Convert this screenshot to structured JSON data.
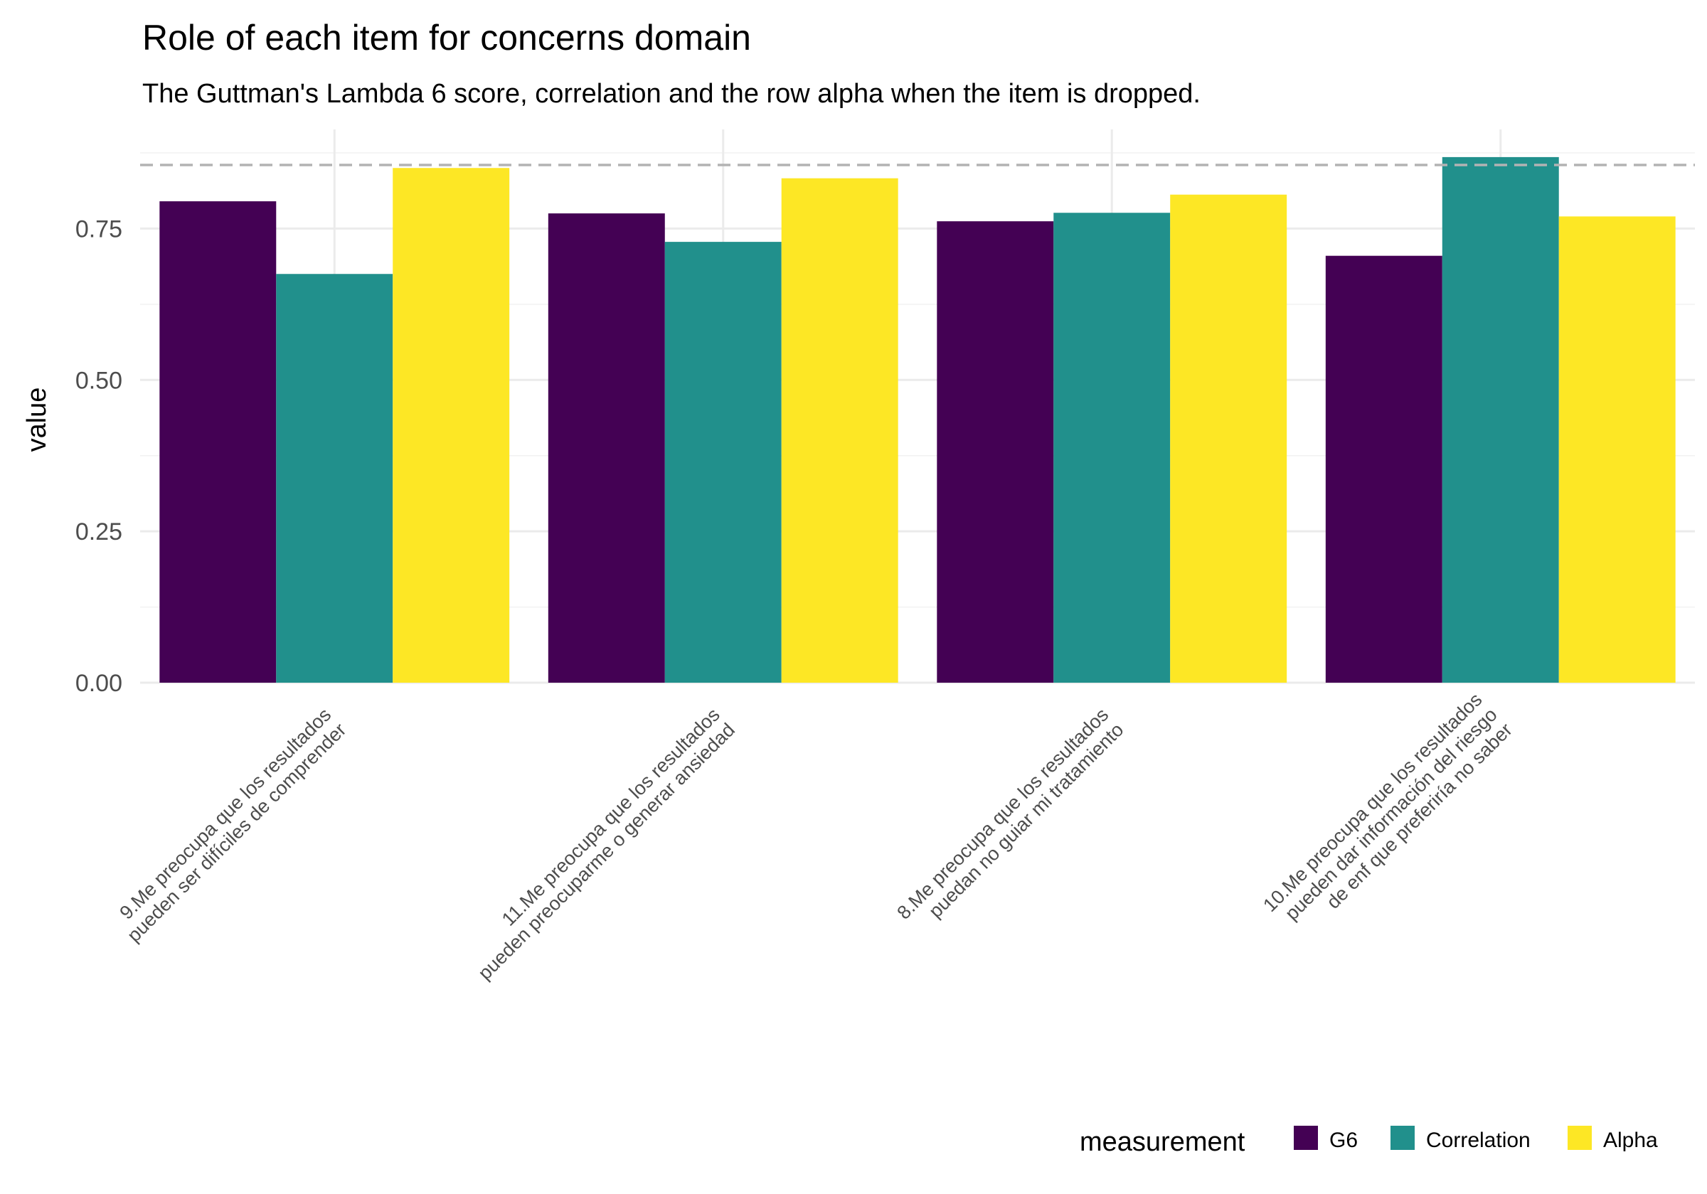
{
  "chart_data": {
    "type": "bar",
    "title": "Role of each item for concerns domain",
    "subtitle": "The Guttman's Lambda 6 score, correlation and the row alpha when the item is dropped.",
    "xlabel": "",
    "ylabel": "value",
    "ylim": [
      0,
      0.88
    ],
    "yticks": [
      0.0,
      0.25,
      0.5,
      0.75
    ],
    "ytick_labels": [
      "0.00",
      "0.25",
      "0.50",
      "0.75"
    ],
    "grid": true,
    "reference_line": {
      "y": 0.855,
      "style": "dashed",
      "color": "#b3b3b3"
    },
    "categories": [
      [
        "9.Me preocupa que los resultados",
        "pueden ser difíciles de comprender"
      ],
      [
        "11.Me preocupa que los resultados",
        "pueden preocuparme o generar ansiedad"
      ],
      [
        "8.Me preocupa que los resultados",
        "puedan no guiar mi tratamiento"
      ],
      [
        "10.Me preocupa que los resultados",
        "pueden dar información del riesgo",
        "de enf que preferiría no saber"
      ]
    ],
    "series": [
      {
        "name": "G6",
        "color": "#440154",
        "values": [
          0.795,
          0.775,
          0.762,
          0.705
        ]
      },
      {
        "name": "Correlation",
        "color": "#21908C",
        "values": [
          0.675,
          0.728,
          0.776,
          0.868
        ]
      },
      {
        "name": "Alpha",
        "color": "#FDE725",
        "values": [
          0.85,
          0.833,
          0.806,
          0.77
        ]
      }
    ],
    "legend": {
      "title": "measurement",
      "position": "bottom-right"
    }
  }
}
